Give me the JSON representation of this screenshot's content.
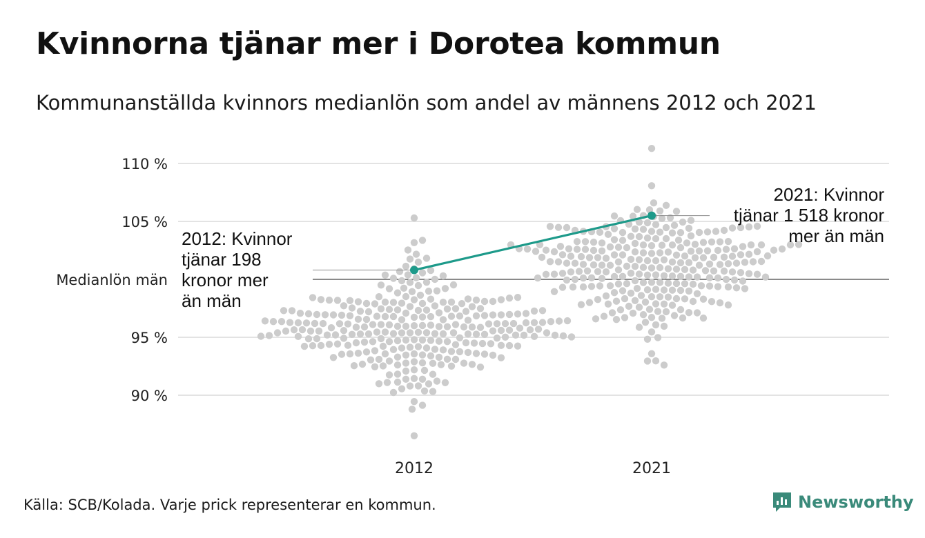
{
  "title": "Kvinnorna tjänar mer i Dorotea kommun",
  "subtitle": "Kommunanställda kvinnors medianlön som andel av männens 2012 och 2021",
  "source": "Källa: SCB/Kolada. Varje prick representerar en kommun.",
  "brand": {
    "name": "Newsworthy",
    "logo_icon": "newsworthy-logo-icon",
    "color": "#3a8a7a"
  },
  "chart_data": {
    "type": "scatter",
    "subtype": "beeswarm",
    "categories": [
      "2012",
      "2021"
    ],
    "ylim": [
      86,
      111
    ],
    "yticks": [
      {
        "value": 90,
        "label": "90 %"
      },
      {
        "value": 95,
        "label": "95 %"
      },
      {
        "value": 100,
        "label": "Medianlön män"
      },
      {
        "value": 105,
        "label": "105 %"
      },
      {
        "value": 110,
        "label": "110 %"
      }
    ],
    "reference_line": {
      "value": 100,
      "label": "Medianlön män"
    },
    "distributions": [
      {
        "category": "2012",
        "min": 86.5,
        "max": 105.3,
        "center": 96.0,
        "spread": 2.6,
        "count": 290
      },
      {
        "category": "2021",
        "min": 92.6,
        "max": 111.3,
        "center": 101.0,
        "spread": 2.6,
        "count": 290
      }
    ],
    "highlight": {
      "name": "Dorotea",
      "points": [
        {
          "x": "2012",
          "y": 100.8
        },
        {
          "x": "2021",
          "y": 105.5
        }
      ],
      "color": "#1d9a8a"
    },
    "annotations": [
      {
        "category": "2012",
        "lines": [
          "2012: Kvinnor",
          "tjänar 198",
          "kronor mer",
          "än män"
        ]
      },
      {
        "category": "2021",
        "lines": [
          "2021: Kvinnor",
          "tjänar 1 518 kronor",
          "mer än män"
        ]
      }
    ],
    "colors": {
      "dots": "#cccccc",
      "grid": "#e3e3e3",
      "reference": "#444444",
      "highlight": "#1d9a8a"
    }
  }
}
